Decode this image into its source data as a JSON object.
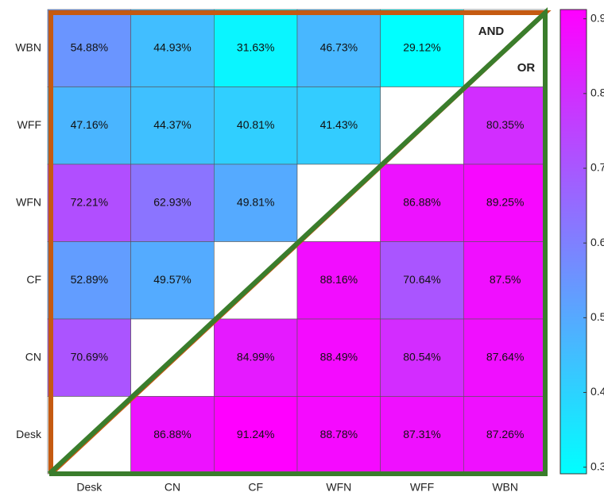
{
  "chart_data": {
    "type": "heatmap",
    "rows": [
      "WBN",
      "WFF",
      "WFN",
      "CF",
      "CN",
      "Desk"
    ],
    "columns": [
      "Desk",
      "CN",
      "CF",
      "WFN",
      "WFF",
      "WBN"
    ],
    "values": [
      [
        0.5488,
        0.4493,
        0.3163,
        0.4673,
        0.2912,
        null
      ],
      [
        0.4716,
        0.4437,
        0.4081,
        0.4143,
        null,
        0.8035
      ],
      [
        0.7221,
        0.6293,
        0.4981,
        null,
        0.8688,
        0.8925
      ],
      [
        0.5289,
        0.4957,
        null,
        0.8816,
        0.7064,
        0.875
      ],
      [
        0.7069,
        null,
        0.8499,
        0.8849,
        0.8054,
        0.8764
      ],
      [
        null,
        0.8688,
        0.9124,
        0.8878,
        0.8731,
        0.8726
      ]
    ],
    "value_labels": [
      [
        "54.88%",
        "44.93%",
        "31.63%",
        "46.73%",
        "29.12%",
        null
      ],
      [
        "47.16%",
        "44.37%",
        "40.81%",
        "41.43%",
        null,
        "80.35%"
      ],
      [
        "72.21%",
        "62.93%",
        "49.81%",
        null,
        "86.88%",
        "89.25%"
      ],
      [
        "52.89%",
        "49.57%",
        null,
        "88.16%",
        "70.64%",
        "87.5%"
      ],
      [
        "70.69%",
        null,
        "84.99%",
        "88.49%",
        "80.54%",
        "87.64%"
      ],
      [
        null,
        "86.88%",
        "91.24%",
        "88.78%",
        "87.31%",
        "87.26%"
      ]
    ],
    "colormap": "cool",
    "clim": [
      0.2912,
      0.9124
    ],
    "cticks": [
      0.3,
      0.4,
      0.5,
      0.6,
      0.7,
      0.8,
      0.9
    ],
    "annotations": [
      {
        "text": "AND",
        "color": "#c55a11"
      },
      {
        "text": "OR",
        "color": "#3a7d2c"
      }
    ]
  }
}
